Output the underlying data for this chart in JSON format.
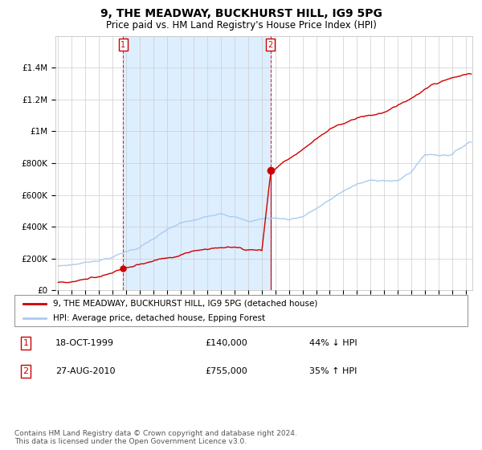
{
  "title": "9, THE MEADWAY, BUCKHURST HILL, IG9 5PG",
  "subtitle": "Price paid vs. HM Land Registry's House Price Index (HPI)",
  "hpi_color": "#aaccee",
  "price_color": "#cc0000",
  "t1_year": 1999.79,
  "t1_price": 140000,
  "t2_year": 2010.64,
  "t2_price": 755000,
  "ylim_max": 1600000,
  "xlim_min": 1994.8,
  "xlim_max": 2025.5,
  "legend1": "9, THE MEADWAY, BUCKHURST HILL, IG9 5PG (detached house)",
  "legend2": "HPI: Average price, detached house, Epping Forest",
  "note1_num": "1",
  "note1_date": "18-OCT-1999",
  "note1_price": "£140,000",
  "note1_hpi": "44% ↓ HPI",
  "note2_num": "2",
  "note2_date": "27-AUG-2010",
  "note2_price": "£755,000",
  "note2_hpi": "35% ↑ HPI",
  "footer": "Contains HM Land Registry data © Crown copyright and database right 2024.\nThis data is licensed under the Open Government Licence v3.0.",
  "shade_color": "#ddeeff"
}
